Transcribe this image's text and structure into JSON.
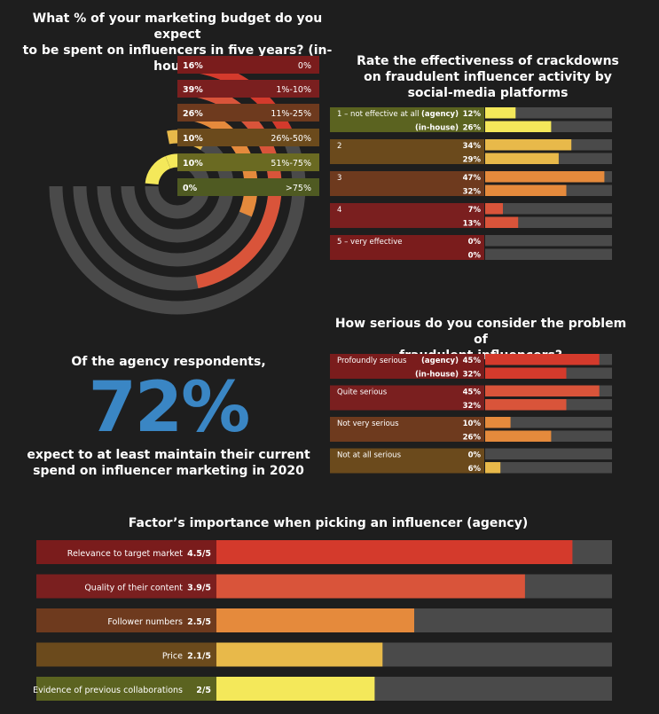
{
  "budget": {
    "title": [
      "What % of your marketing budget do you expect",
      "to be spent on influencers in five years? (in-house)"
    ],
    "chart_data": {
      "type": "bar",
      "subtype": "radial",
      "categories": [
        "0%",
        "1%-10%",
        "11%-25%",
        "26%-50%",
        "51%-75%",
        ">75%"
      ],
      "values": [
        16,
        39,
        26,
        10,
        10,
        0
      ],
      "value_labels": [
        "16%",
        "39%",
        "26%",
        "10%",
        "10%",
        "0%"
      ],
      "colors": [
        "#d43a2c",
        "#d9543a",
        "#e58a3c",
        "#e8b94a",
        "#f4e85a",
        "#f4e85a"
      ],
      "label_colors": [
        "#7a1c1c",
        "#7a1f1f",
        "#6e3a1e",
        "#6b4a1c",
        "#6a6a22",
        "#4f5a22"
      ]
    }
  },
  "crackdown": {
    "title": [
      "Rate the effectiveness of crackdowns",
      "on fraudulent influencer activity by",
      "social-media platforms"
    ],
    "chart_data": {
      "type": "bar",
      "categories": [
        "1 – not effective at all",
        "2",
        "3",
        "4",
        "5 – very effective"
      ],
      "series": [
        {
          "name": "(agency)",
          "values": [
            12,
            34,
            47,
            7,
            0
          ]
        },
        {
          "name": "(in-house)",
          "values": [
            26,
            29,
            32,
            13,
            0
          ]
        }
      ],
      "value_labels": [
        [
          "12%",
          "26%"
        ],
        [
          "34%",
          "29%"
        ],
        [
          "47%",
          "32%"
        ],
        [
          "7%",
          "13%"
        ],
        [
          "0%",
          "0%"
        ]
      ],
      "xlim": [
        0,
        50
      ],
      "colors": [
        "#f4e85a",
        "#e8b94a",
        "#e58a3c",
        "#d9543a",
        "#d43a2c"
      ],
      "label_colors": [
        "#5b6320",
        "#6b4a1c",
        "#6e3a1e",
        "#7a1f1f",
        "#7a1c1c"
      ]
    }
  },
  "callout": {
    "top": "Of the agency respondents,",
    "number": "72%",
    "bottom": [
      "expect to at least maintain their current",
      "spend on influencer marketing in 2020"
    ]
  },
  "serious": {
    "title": [
      "How serious do you consider the problem of",
      "fraudulent influencers?"
    ],
    "chart_data": {
      "type": "bar",
      "categories": [
        "Profoundly serious",
        "Quite serious",
        "Not very serious",
        "Not at all serious"
      ],
      "series": [
        {
          "name": "(agency)",
          "values": [
            45,
            45,
            10,
            0
          ]
        },
        {
          "name": "(in-house)",
          "values": [
            32,
            32,
            26,
            6
          ]
        }
      ],
      "value_labels": [
        [
          "45%",
          "32%"
        ],
        [
          "45%",
          "32%"
        ],
        [
          "10%",
          "26%"
        ],
        [
          "0%",
          "6%"
        ]
      ],
      "xlim": [
        0,
        50
      ],
      "colors": [
        "#d43a2c",
        "#d9543a",
        "#e58a3c",
        "#e8b94a"
      ],
      "label_colors": [
        "#7a1c1c",
        "#7a1f1f",
        "#6e3a1e",
        "#6b4a1c"
      ]
    }
  },
  "factors": {
    "title": "Factor’s importance when picking an influencer (agency)",
    "chart_data": {
      "type": "bar",
      "categories": [
        "Relevance to target market",
        "Quality of their content",
        "Follower numbers",
        "Price",
        "Evidence of previous collaborations"
      ],
      "values": [
        4.5,
        3.9,
        2.5,
        2.1,
        2.0
      ],
      "value_labels": [
        "4.5/5",
        "3.9/5",
        "2.5/5",
        "2.1/5",
        "2/5"
      ],
      "xlim": [
        0,
        5
      ],
      "colors": [
        "#d43a2c",
        "#d9543a",
        "#e58a3c",
        "#e8b94a",
        "#f4e85a"
      ],
      "label_colors": [
        "#7a1c1c",
        "#7a1f1f",
        "#6e3a1e",
        "#6b4a1c",
        "#5b6320"
      ]
    }
  },
  "track_color": "#4a4a4a"
}
